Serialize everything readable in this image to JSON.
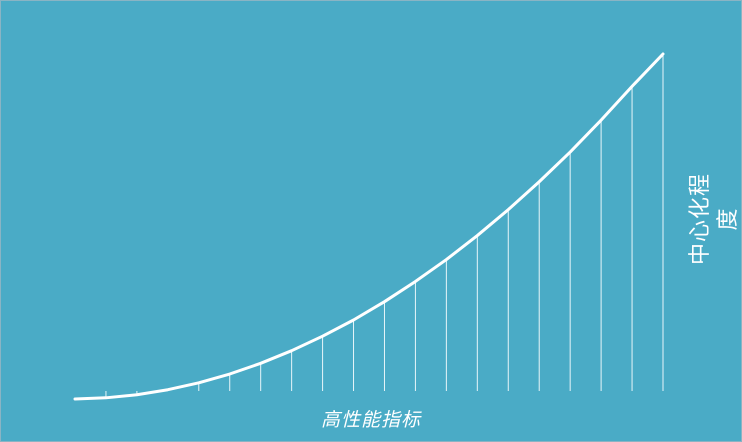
{
  "chart_data": {
    "type": "line",
    "title": "",
    "xlabel": "高性能指标",
    "ylabel": "中心化程度",
    "x": [
      0,
      1,
      2,
      3,
      4,
      5,
      6,
      7,
      8,
      9,
      10,
      11,
      12,
      13,
      14,
      15,
      16,
      17,
      18,
      19
    ],
    "series": [
      {
        "values": [
          0,
          0.5,
          1.8,
          3.9,
          6.8,
          10.5,
          15.0,
          20.3,
          26.4,
          33.2,
          40.9,
          49.4,
          58.6,
          68.7,
          79.6,
          91.3,
          103.8,
          117.2,
          131.4,
          145
        ]
      }
    ],
    "xlim": [
      0,
      19
    ],
    "ylim": [
      0,
      145
    ],
    "drop_lines": true,
    "colors": {
      "background": "#4aabc6",
      "line": "#ffffff",
      "drop_line": "#e8f5f9"
    }
  }
}
